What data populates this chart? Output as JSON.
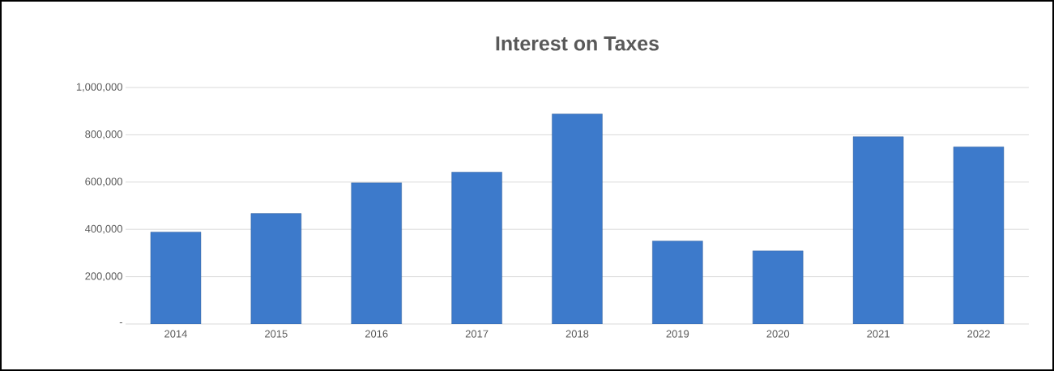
{
  "chart_data": {
    "type": "bar",
    "title": "Interest on Taxes",
    "categories": [
      "2014",
      "2015",
      "2016",
      "2017",
      "2018",
      "2019",
      "2020",
      "2021",
      "2022"
    ],
    "values": [
      389000,
      467000,
      597000,
      642000,
      888000,
      351000,
      309000,
      792000,
      749000
    ],
    "color": "#3d7acb",
    "ylim": [
      0,
      1000000
    ],
    "yticks": [
      {
        "value": 0,
        "label": "-"
      },
      {
        "value": 200000,
        "label": "200,000"
      },
      {
        "value": 400000,
        "label": "400,000"
      },
      {
        "value": 600000,
        "label": "600,000"
      },
      {
        "value": 800000,
        "label": "800,000"
      },
      {
        "value": 1000000,
        "label": "1,000,000"
      }
    ],
    "grid": "y"
  }
}
